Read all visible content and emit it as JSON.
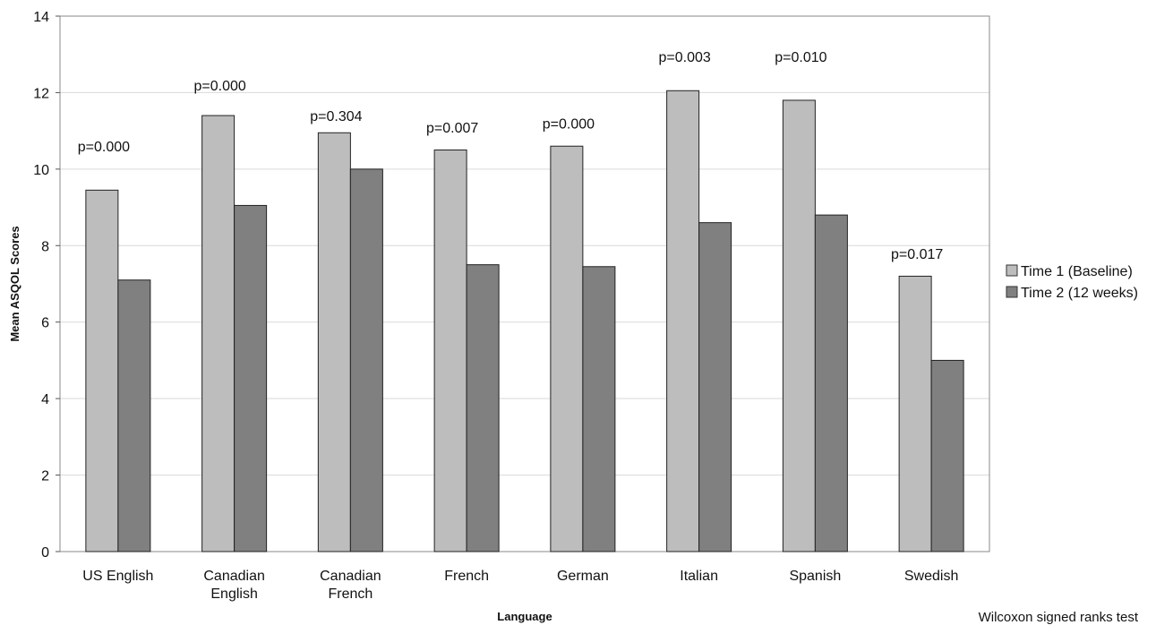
{
  "chart_data": {
    "type": "bar",
    "xlabel": "Language",
    "ylabel": "Mean ASQOL Scores",
    "ylim": [
      0,
      14
    ],
    "yticks": [
      0,
      2,
      4,
      6,
      8,
      10,
      12,
      14
    ],
    "grid": true,
    "legend_position": "right",
    "categories": [
      [
        "US English"
      ],
      [
        "Canadian",
        "English"
      ],
      [
        "Canadian",
        "French"
      ],
      [
        "French"
      ],
      [
        "German"
      ],
      [
        "Italian"
      ],
      [
        "Spanish"
      ],
      [
        "Swedish"
      ]
    ],
    "series": [
      {
        "name": "Time 1 (Baseline)",
        "color": "#bdbdbd",
        "values": [
          9.45,
          11.4,
          10.95,
          10.5,
          10.6,
          12.05,
          11.8,
          7.2
        ]
      },
      {
        "name": "Time 2 (12 weeks)",
        "color": "#808080",
        "values": [
          7.1,
          9.05,
          10.0,
          7.5,
          7.45,
          8.6,
          8.8,
          5.0
        ]
      }
    ],
    "annotations": [
      "p=0.000",
      "p=0.000",
      "p=0.304",
      "p=0.007",
      "p=0.000",
      "p=0.003",
      "p=0.010",
      "p=0.017"
    ],
    "annotation_levels": [
      10.6,
      12.2,
      11.4,
      11.1,
      11.2,
      12.95,
      12.95,
      7.8
    ],
    "footnote": "Wilcoxon signed ranks test"
  }
}
